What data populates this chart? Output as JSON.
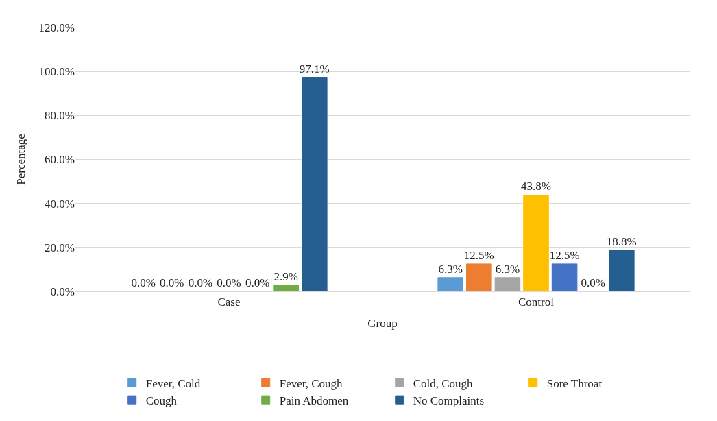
{
  "chart_data": {
    "type": "bar",
    "xlabel": "Group",
    "ylabel": "Percentage",
    "categories": [
      "Case",
      "Control"
    ],
    "series": [
      {
        "name": "Fever, Cold",
        "color": "#5b9bd5",
        "values": [
          0.0,
          6.3
        ],
        "value_labels": [
          "0.0%",
          "6.3%"
        ]
      },
      {
        "name": "Fever, Cough",
        "color": "#ed7d31",
        "values": [
          0.0,
          12.5
        ],
        "value_labels": [
          "0.0%",
          "12.5%"
        ]
      },
      {
        "name": "Cold, Cough",
        "color": "#a5a5a5",
        "values": [
          0.0,
          6.3
        ],
        "value_labels": [
          "0.0%",
          "6.3%"
        ]
      },
      {
        "name": "Sore Throat",
        "color": "#ffc000",
        "values": [
          0.0,
          43.8
        ],
        "value_labels": [
          "0.0%",
          "43.8%"
        ]
      },
      {
        "name": "Cough",
        "color": "#4472c4",
        "values": [
          0.0,
          12.5
        ],
        "value_labels": [
          "0.0%",
          "12.5%"
        ]
      },
      {
        "name": "Pain Abdomen",
        "color": "#70ad47",
        "values": [
          2.9,
          0.0
        ],
        "value_labels": [
          "2.9%",
          "0.0%"
        ]
      },
      {
        "name": "No Complaints",
        "color": "#255e91",
        "values": [
          97.1,
          18.8
        ],
        "value_labels": [
          "97.1%",
          "18.8%"
        ]
      }
    ],
    "ylim": [
      0,
      120
    ],
    "yticks": [
      {
        "value": 0,
        "label": "0.0%"
      },
      {
        "value": 20,
        "label": "20.0%"
      },
      {
        "value": 40,
        "label": "40.0%"
      },
      {
        "value": 60,
        "label": "60.0%"
      },
      {
        "value": 80,
        "label": "80.0%"
      },
      {
        "value": 100,
        "label": "100.0%"
      },
      {
        "value": 120,
        "label": "120.0%"
      }
    ],
    "grid": "y",
    "legend": "bottom"
  }
}
